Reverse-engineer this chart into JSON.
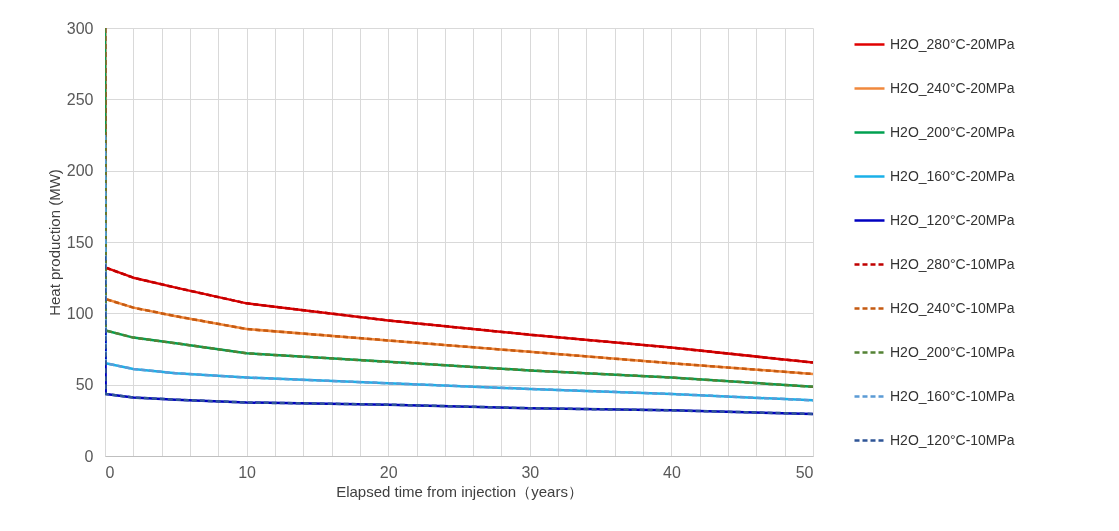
{
  "chart_data": {
    "type": "line",
    "xlabel": "Elapsed time from injection（years）",
    "ylabel": "Heat production (MW)",
    "x": [
      0,
      0.05,
      2,
      5,
      10,
      20,
      30,
      40,
      50
    ],
    "xlim": [
      0,
      50
    ],
    "xticks": [
      0,
      {
        "value": 2,
        "label": null
      },
      {
        "value": 4,
        "label": null
      },
      {
        "value": 6,
        "label": null
      },
      {
        "value": 8,
        "label": null
      },
      10,
      {
        "value": 12,
        "label": null
      },
      {
        "value": 14,
        "label": null
      },
      {
        "value": 16,
        "label": null
      },
      {
        "value": 18,
        "label": null
      },
      20,
      {
        "value": 22,
        "label": null
      },
      {
        "value": 24,
        "label": null
      },
      {
        "value": 26,
        "label": null
      },
      {
        "value": 28,
        "label": null
      },
      30,
      {
        "value": 32,
        "label": null
      },
      {
        "value": 34,
        "label": null
      },
      {
        "value": 36,
        "label": null
      },
      {
        "value": 38,
        "label": null
      },
      40,
      {
        "value": 42,
        "label": null
      },
      {
        "value": 44,
        "label": null
      },
      {
        "value": 46,
        "label": null
      },
      {
        "value": 48,
        "label": null
      },
      50
    ],
    "ylim": [
      0,
      300
    ],
    "yticks": [
      0,
      50,
      100,
      150,
      200,
      250,
      300
    ],
    "grid": true,
    "legend": "right",
    "marker": "none",
    "series": [
      {
        "name": "H2O_280°C-20MPa",
        "color": "#e00000",
        "line_style": "solid",
        "values": [
          300,
          132,
          125,
          118,
          107,
          95,
          85,
          76,
          65.5
        ]
      },
      {
        "name": "H2O_240°C-20MPa",
        "color": "#f0883c",
        "line_style": "solid",
        "values": [
          300,
          110,
          104,
          98,
          89,
          81,
          73,
          65,
          57.5
        ]
      },
      {
        "name": "H2O_200°C-20MPa",
        "color": "#00a050",
        "line_style": "solid",
        "values": [
          300,
          88,
          83,
          79,
          72,
          66,
          60,
          55,
          48.5
        ]
      },
      {
        "name": "H2O_160°C-20MPa",
        "color": "#1ab0e8",
        "line_style": "solid",
        "values": [
          225,
          65,
          61,
          58,
          55,
          51,
          47,
          43.5,
          39
        ]
      },
      {
        "name": "H2O_120°C-20MPa",
        "color": "#0000c0",
        "line_style": "solid",
        "values": [
          140,
          43.5,
          41,
          39.5,
          37.5,
          36,
          33.5,
          32,
          29.5
        ]
      },
      {
        "name": "H2O_280°C-10MPa",
        "color": "#c00000",
        "line_style": "dashed",
        "values": [
          300,
          132,
          125,
          118,
          107,
          95,
          85,
          76,
          65.5
        ]
      },
      {
        "name": "H2O_240°C-10MPa",
        "color": "#c55a11",
        "line_style": "dashed",
        "values": [
          300,
          110,
          104,
          98,
          89,
          81,
          73,
          65,
          57.5
        ]
      },
      {
        "name": "H2O_200°C-10MPa",
        "color": "#548235",
        "line_style": "dashed",
        "values": [
          300,
          88,
          83,
          79,
          72,
          66,
          60,
          55,
          48.5
        ]
      },
      {
        "name": "H2O_160°C-10MPa",
        "color": "#5b9bd5",
        "line_style": "dashed",
        "values": [
          225,
          65,
          61,
          58,
          55,
          51,
          47,
          43.5,
          39
        ]
      },
      {
        "name": "H2O_120°C-10MPa",
        "color": "#2f5597",
        "line_style": "dashed",
        "values": [
          140,
          43.5,
          41,
          39.5,
          37.5,
          36,
          33.5,
          32,
          29.5
        ]
      }
    ]
  }
}
